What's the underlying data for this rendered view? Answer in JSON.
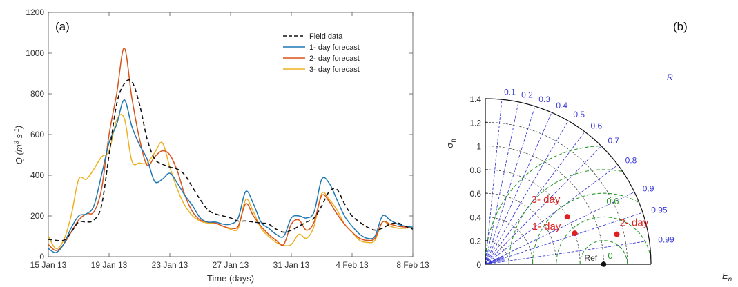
{
  "chart_data": [
    {
      "type": "line",
      "panel_label": "(a)",
      "xlabel": "Time (days)",
      "ylabel_main": "Q (m",
      "ylabel_sup1": "3",
      "ylabel_mid": " s",
      "ylabel_sup2": "-1",
      "ylabel_end": ")",
      "ylim": [
        0,
        1200
      ],
      "yticks": [
        "0",
        "200",
        "400",
        "600",
        "800",
        "1000",
        "1200"
      ],
      "xlim": [
        0,
        24
      ],
      "xticks": [
        {
          "x": 0,
          "label": "15 Jan 13"
        },
        {
          "x": 4,
          "label": "19 Jan 13"
        },
        {
          "x": 8,
          "label": "23 Jan 13"
        },
        {
          "x": 12,
          "label": "27 Jan 13"
        },
        {
          "x": 16,
          "label": "31 Jan 13"
        },
        {
          "x": 20,
          "label": "4 Feb 13"
        },
        {
          "x": 24,
          "label": "8 Feb 13"
        }
      ],
      "legend_position": "top-right",
      "series": [
        {
          "name": "Field data",
          "color": "#111111",
          "dash": true,
          "x": [
            0,
            1,
            1.5,
            2,
            2.5,
            3,
            3.5,
            4,
            4.5,
            5,
            5.5,
            6,
            6.5,
            7,
            7.5,
            8,
            8.5,
            9,
            9.5,
            10,
            10.5,
            11,
            11.5,
            12,
            12.5,
            13,
            13.5,
            14,
            14.5,
            15,
            15.5,
            16,
            16.5,
            17,
            17.5,
            18,
            18.5,
            19,
            19.5,
            20,
            20.5,
            21,
            21.5,
            22,
            22.5,
            23,
            23.5,
            24
          ],
          "y": [
            85,
            80,
            120,
            170,
            170,
            180,
            250,
            500,
            750,
            850,
            860,
            750,
            580,
            480,
            455,
            440,
            430,
            400,
            340,
            280,
            230,
            210,
            200,
            190,
            175,
            175,
            170,
            165,
            160,
            135,
            120,
            130,
            150,
            170,
            190,
            250,
            320,
            330,
            260,
            200,
            170,
            145,
            130,
            140,
            160,
            165,
            150,
            135
          ]
        },
        {
          "name": "1- day forecast",
          "color": "#1f77b4",
          "dash": false,
          "x": [
            0,
            0.5,
            1,
            1.5,
            2,
            2.5,
            3,
            3.5,
            4,
            4.5,
            5,
            5.5,
            6,
            6.5,
            7,
            7.5,
            8,
            8.5,
            9,
            9.5,
            10,
            10.5,
            11,
            11.5,
            12,
            12.5,
            13,
            13.5,
            14,
            14.5,
            15,
            15.5,
            16,
            16.5,
            17,
            17.5,
            18,
            18.5,
            19,
            19.5,
            20,
            20.5,
            21,
            21.5,
            22,
            22.5,
            23,
            23.5,
            24
          ],
          "y": [
            40,
            20,
            60,
            140,
            200,
            210,
            250,
            400,
            560,
            650,
            770,
            640,
            550,
            480,
            370,
            380,
            410,
            360,
            300,
            250,
            190,
            170,
            170,
            160,
            160,
            190,
            320,
            260,
            170,
            140,
            110,
            100,
            190,
            200,
            190,
            220,
            380,
            360,
            280,
            200,
            150,
            110,
            90,
            100,
            200,
            180,
            160,
            150,
            145
          ]
        },
        {
          "name": "2- day forecast",
          "color": "#d95319",
          "dash": false,
          "x": [
            0,
            0.5,
            1,
            1.5,
            2,
            2.5,
            3,
            3.5,
            4,
            4.5,
            5,
            5.5,
            6,
            6.5,
            7,
            7.5,
            8,
            8.5,
            9,
            9.5,
            10,
            10.5,
            11,
            11.5,
            12,
            12.5,
            13,
            13.5,
            14,
            14.5,
            15,
            15.5,
            16,
            16.5,
            17,
            17.5,
            18,
            18.5,
            19,
            19.5,
            20,
            20.5,
            21,
            21.5,
            22,
            22.5,
            23,
            23.5,
            24
          ],
          "y": [
            60,
            30,
            60,
            120,
            180,
            210,
            220,
            330,
            600,
            800,
            1025,
            780,
            580,
            450,
            490,
            520,
            500,
            420,
            300,
            220,
            180,
            170,
            165,
            150,
            140,
            150,
            260,
            200,
            150,
            110,
            80,
            60,
            160,
            180,
            130,
            170,
            300,
            270,
            210,
            160,
            120,
            90,
            80,
            90,
            170,
            160,
            150,
            145,
            140
          ]
        },
        {
          "name": "3- day forecast",
          "color": "#edb120",
          "dash": false,
          "x": [
            0,
            0.5,
            1,
            1.5,
            2,
            2.5,
            3,
            3.5,
            4,
            4.5,
            5,
            5.5,
            6,
            6.5,
            7,
            7.5,
            8,
            8.5,
            9,
            9.5,
            10,
            10.5,
            11,
            11.5,
            12,
            12.5,
            13,
            13.5,
            14,
            14.5,
            15,
            15.5,
            16,
            16.5,
            17,
            17.5,
            18,
            18.5,
            19,
            19.5,
            20,
            20.5,
            21,
            21.5,
            22,
            22.5,
            23,
            23.5,
            24
          ],
          "y": [
            100,
            40,
            80,
            200,
            380,
            380,
            430,
            490,
            520,
            670,
            680,
            470,
            460,
            460,
            510,
            560,
            440,
            330,
            250,
            200,
            175,
            165,
            165,
            150,
            135,
            140,
            280,
            220,
            140,
            100,
            70,
            55,
            60,
            110,
            90,
            150,
            310,
            280,
            230,
            160,
            120,
            80,
            70,
            80,
            170,
            150,
            140,
            140,
            145
          ]
        }
      ]
    },
    {
      "type": "taylor",
      "panel_label": "(b)",
      "ylabel": "σ",
      "ylabel_sub": "n",
      "xlabel": "E",
      "xlabel_sub": "n",
      "rmax": 1.4,
      "yticks": [
        "0",
        "0.2",
        "0.4",
        "0.6",
        "0.8",
        "1",
        "1.2",
        "1.4"
      ],
      "corr_title": "R",
      "corr_ticks": [
        "0.1",
        "0.2",
        "0.3",
        "0.4",
        "0.5",
        "0.6",
        "0.7",
        "0.8",
        "0.9",
        "0.95",
        "0.99"
      ],
      "corr_values": [
        0.1,
        0.2,
        0.3,
        0.4,
        0.5,
        0.6,
        0.7,
        0.8,
        0.9,
        0.95,
        0.99
      ],
      "rms_labels": [
        "0",
        "0.6"
      ],
      "ref": {
        "label": "Ref",
        "std": 1.0,
        "corr": 1.0
      },
      "points": [
        {
          "label": "1- day",
          "std": 0.8,
          "corr": 0.945
        },
        {
          "label": "2- day",
          "std": 1.14,
          "corr": 0.975
        },
        {
          "label": "3- day",
          "std": 0.8,
          "corr": 0.865
        }
      ],
      "colors": {
        "corr": "#3b3bd6",
        "rms": "#2a9a2a",
        "points": "#e02020"
      }
    }
  ]
}
